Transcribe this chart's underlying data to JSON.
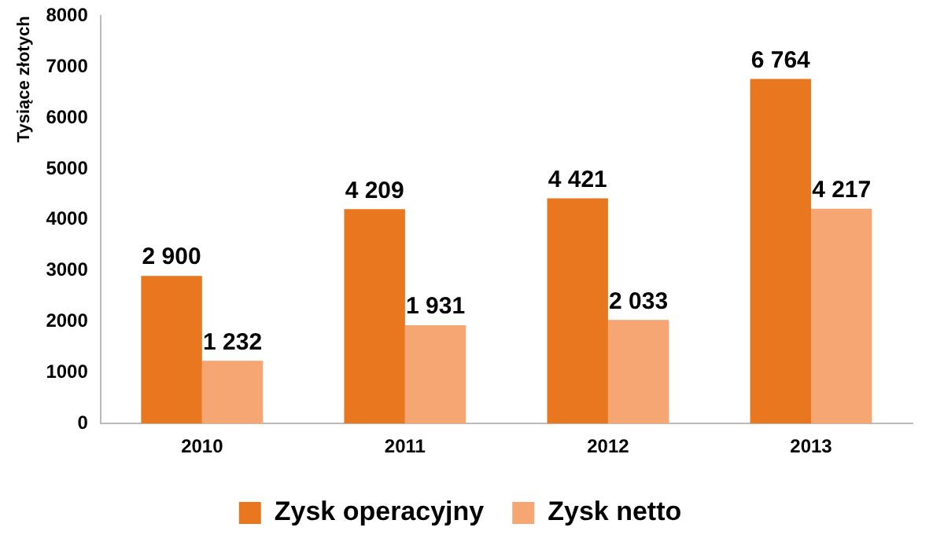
{
  "chart_data": {
    "type": "bar",
    "ylabel": "Tysiące złotych",
    "categories": [
      "2010",
      "2011",
      "2012",
      "2013"
    ],
    "series": [
      {
        "name": "Zysk operacyjny",
        "color": "#e8771f",
        "values": [
          2900,
          4209,
          4421,
          6764
        ],
        "value_labels": [
          "2 900",
          "4 209",
          "4 421",
          "6 764"
        ]
      },
      {
        "name": "Zysk netto",
        "color": "#f5a673",
        "values": [
          1232,
          1931,
          2033,
          4217
        ],
        "value_labels": [
          "1 232",
          "1 931",
          "2 033",
          "4 217"
        ]
      }
    ],
    "ylim": [
      0,
      8000
    ],
    "yticks": [
      0,
      1000,
      2000,
      3000,
      4000,
      5000,
      6000,
      7000,
      8000
    ],
    "grid": false,
    "legend": "bottom"
  }
}
